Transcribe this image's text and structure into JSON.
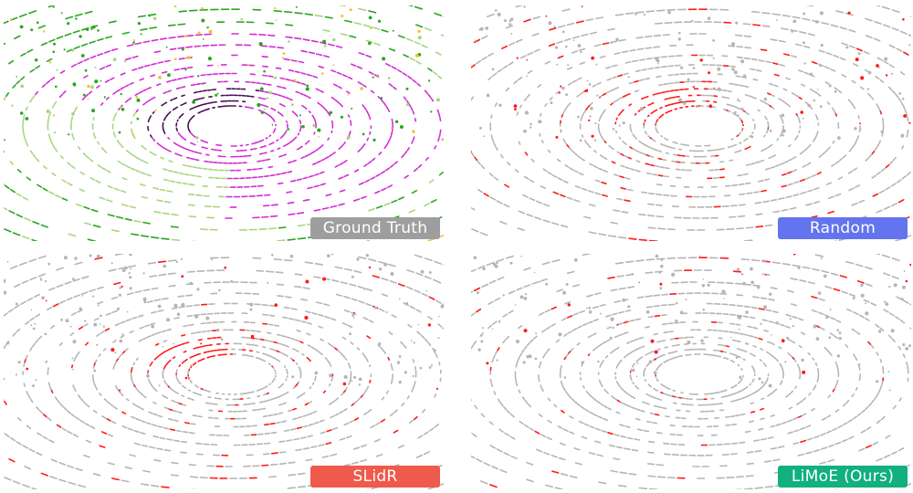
{
  "panels": [
    {
      "id": "ground-truth",
      "label": "Ground Truth",
      "badge_color": "#9e9e9e",
      "style": "semantic"
    },
    {
      "id": "random",
      "label": "Random",
      "badge_color": "#6374ee",
      "style": "error"
    },
    {
      "id": "slidr",
      "label": "SLidR",
      "badge_color": "#ee5a4c",
      "style": "error"
    },
    {
      "id": "limoe",
      "label": "LiMoE (Ours)",
      "badge_color": "#12b07e",
      "style": "error"
    }
  ],
  "colors": {
    "point_gray": "#b5b5b5",
    "error_red": "#ff1a1a",
    "vegetation": "#2aa61f",
    "terrain": "#a8d67f",
    "road": "#d42bd4",
    "sidewalk": "#4b0f55",
    "building": "#f2c230",
    "car": "#6c7cf0",
    "trunk": "#8b4513"
  }
}
